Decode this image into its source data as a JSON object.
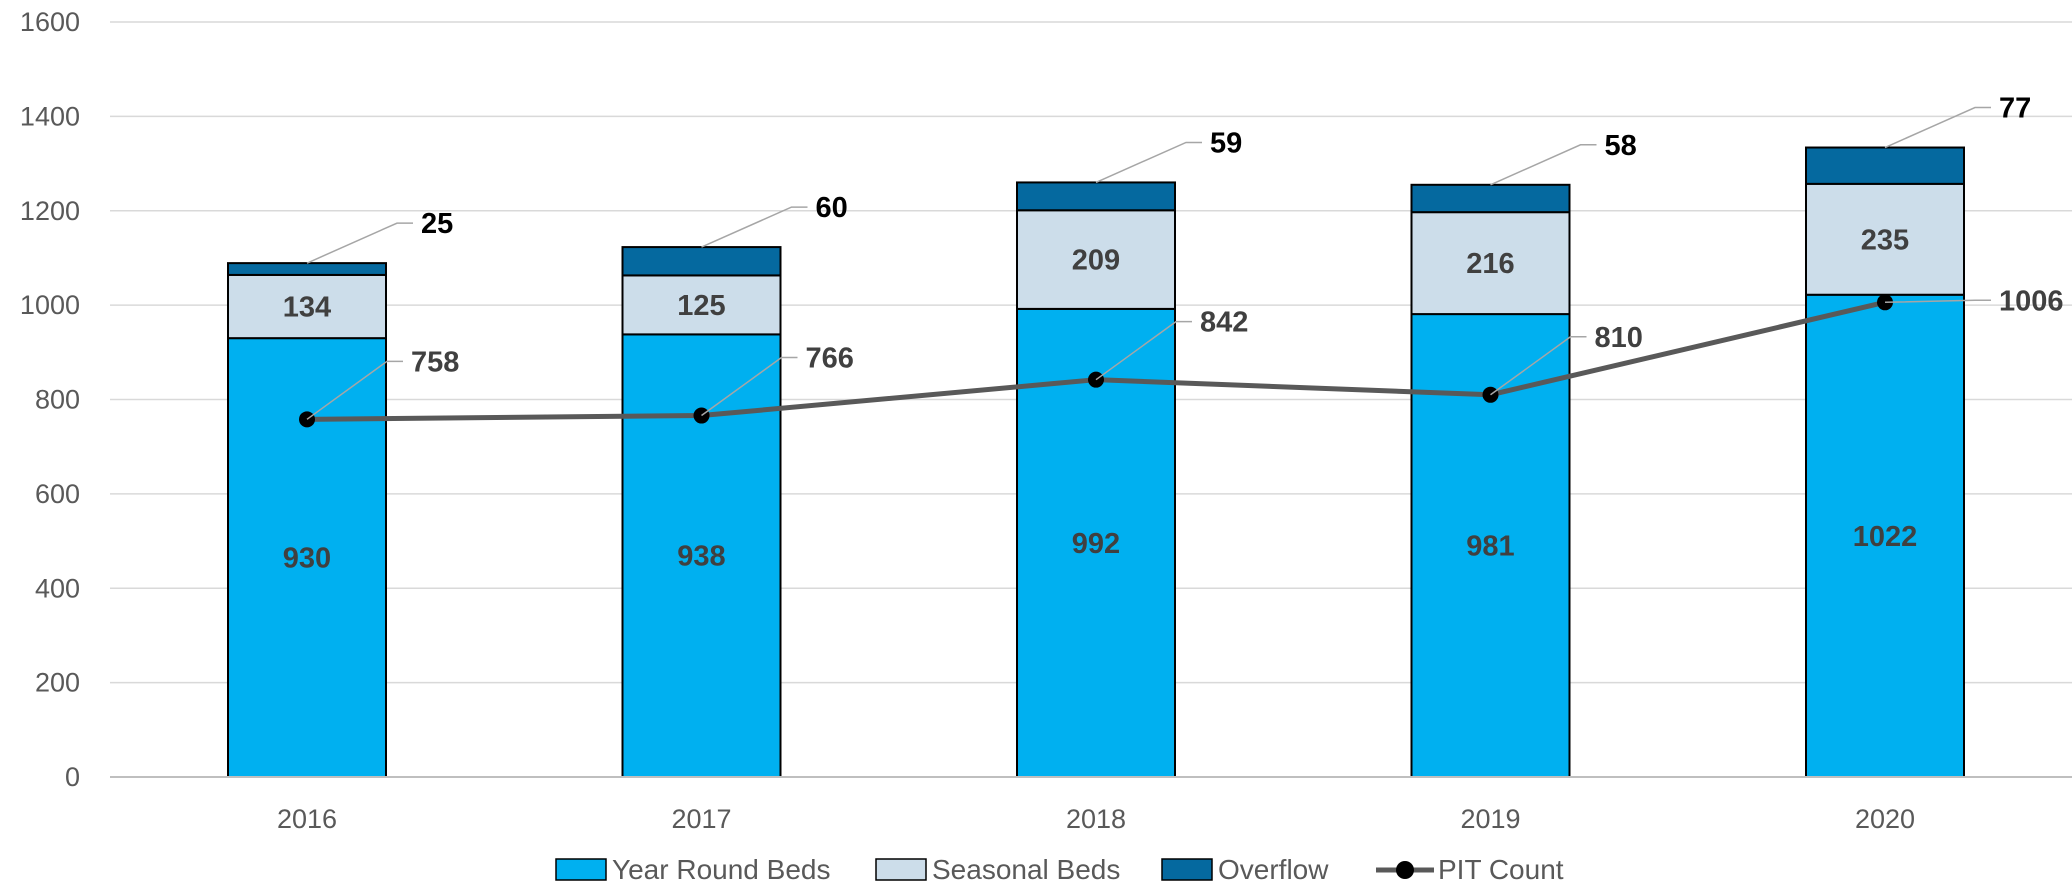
{
  "chart_data": {
    "type": "bar",
    "stacked": true,
    "categories": [
      "2016",
      "2017",
      "2018",
      "2019",
      "2020"
    ],
    "series": [
      {
        "name": "Year Round Beds",
        "kind": "bar",
        "color": "#00B0F0",
        "values": [
          930,
          938,
          992,
          981,
          1022
        ]
      },
      {
        "name": "Seasonal Beds",
        "kind": "bar",
        "color": "#CCDDEA",
        "values": [
          134,
          125,
          209,
          216,
          235
        ]
      },
      {
        "name": "Overflow",
        "kind": "bar",
        "color": "#05699F",
        "values": [
          25,
          60,
          59,
          58,
          77
        ]
      },
      {
        "name": "PIT Count",
        "kind": "line",
        "color": "#595959",
        "marker_color": "#000000",
        "values": [
          758,
          766,
          842,
          810,
          1006
        ]
      }
    ],
    "y_ticks": [
      0,
      200,
      400,
      600,
      800,
      1000,
      1200,
      1400,
      1600
    ],
    "ylim": [
      0,
      1600
    ],
    "grid": true,
    "legend_position": "bottom",
    "colors": {
      "gridline": "#D9D9D9",
      "axis": "#BFBFBF",
      "bar_outline": "#000000",
      "leader_line": "#A6A6A6",
      "callout_text": "#000000",
      "pit_label_text": "#404040"
    }
  }
}
